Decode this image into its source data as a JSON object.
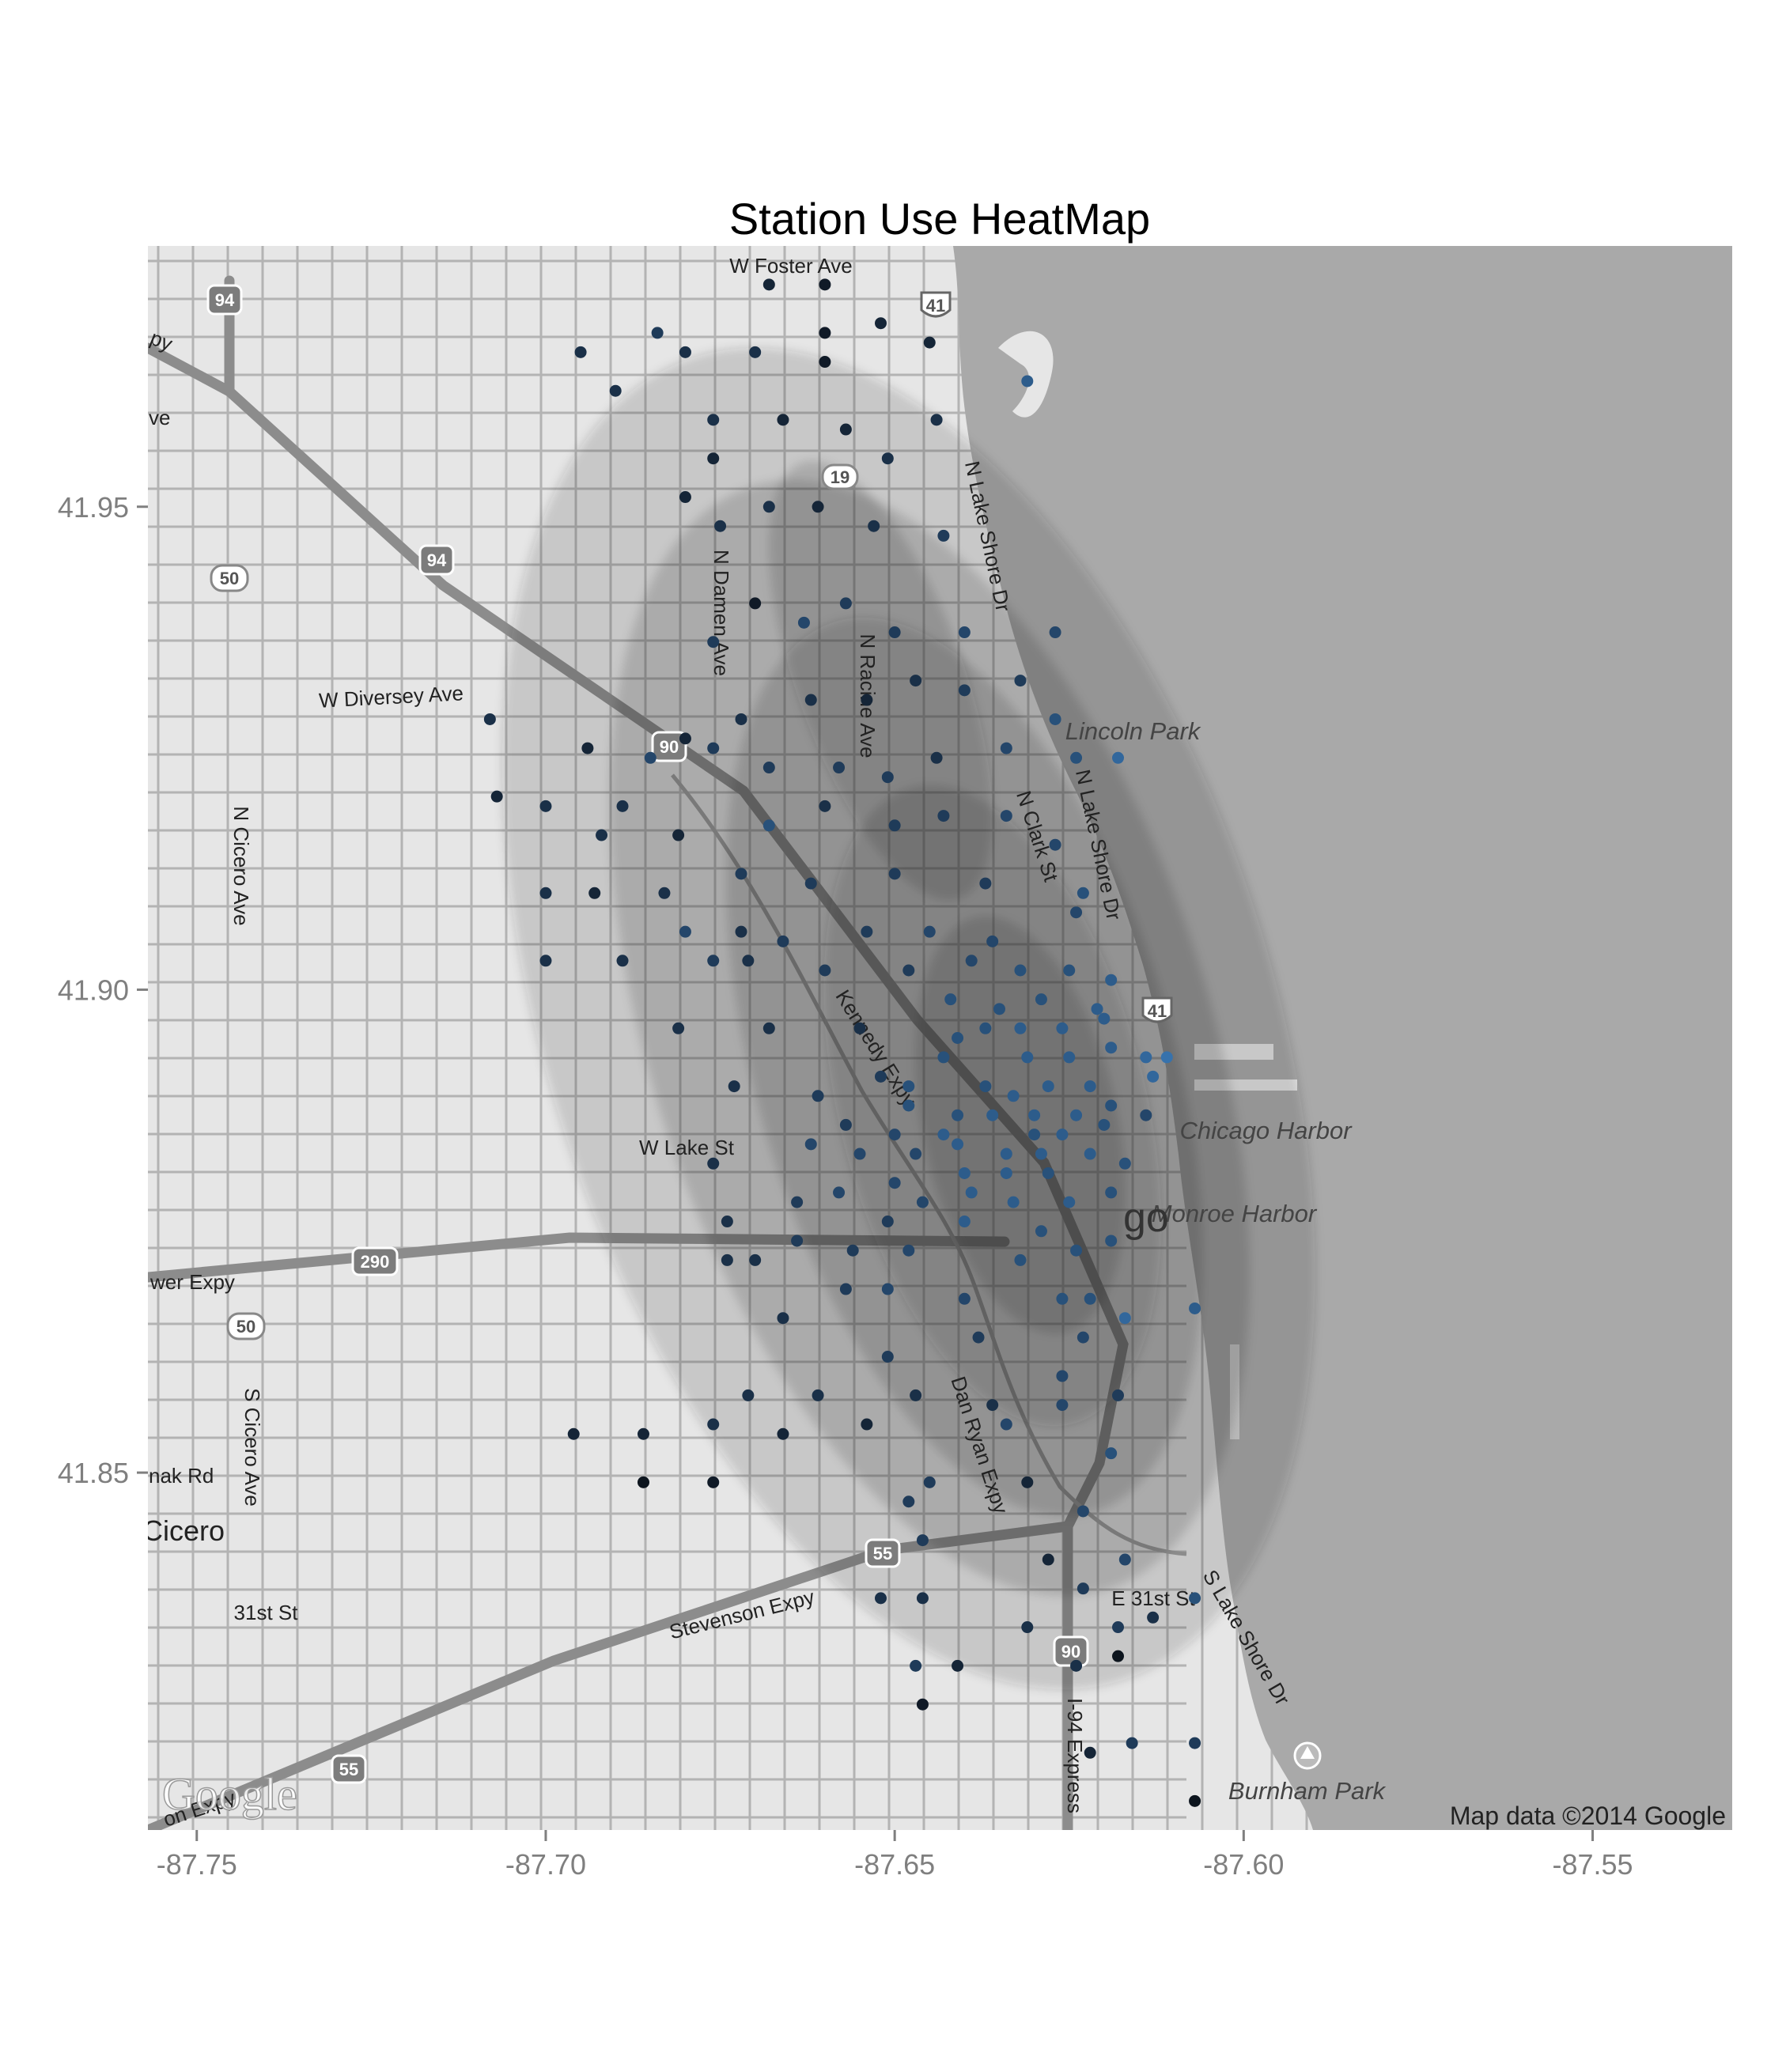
{
  "chart_data": {
    "type": "scatter",
    "title": "Station Use HeatMap",
    "xlim": [
      -87.757,
      -87.53
    ],
    "ylim": [
      41.813,
      41.977
    ],
    "x_ticks": [
      -87.75,
      -87.7,
      -87.65,
      -87.6,
      -87.55
    ],
    "x_tick_labels": [
      "-87.75",
      "-87.70",
      "-87.65",
      "-87.60",
      "-87.55"
    ],
    "y_ticks": [
      41.85,
      41.9,
      41.95
    ],
    "y_tick_labels": [
      "41.85",
      "41.90",
      "41.95"
    ],
    "grid": false,
    "background": "google-map-grayscale",
    "attribution": "Map data ©2014 Google",
    "logo": "Google",
    "colors": {
      "water": "#a9a9a9",
      "land": "#e6e6e6",
      "density": "#1e1e1e",
      "point_low": "#0b0f16",
      "point_high": "#3c7dbd"
    },
    "density_levels": [
      {
        "cx": -87.648,
        "cy": 41.897,
        "rx": 0.052,
        "ry": 0.072,
        "rot": -18
      },
      {
        "cx": -87.645,
        "cy": 41.895,
        "rx": 0.04,
        "ry": 0.06,
        "rot": -18
      },
      {
        "cx": -87.64,
        "cy": 41.892,
        "rx": 0.03,
        "ry": 0.048,
        "rot": -16
      },
      {
        "cx": -87.636,
        "cy": 41.888,
        "rx": 0.022,
        "ry": 0.034,
        "rot": -14
      },
      {
        "cx": -87.632,
        "cy": 41.886,
        "rx": 0.014,
        "ry": 0.022,
        "rot": -12
      },
      {
        "cx": -87.652,
        "cy": 41.932,
        "rx": 0.012,
        "ry": 0.024,
        "rot": -20
      }
    ],
    "points": [
      {
        "x": -87.668,
        "y": 41.973,
        "v": 0.2
      },
      {
        "x": -87.66,
        "y": 41.973,
        "v": 0.1
      },
      {
        "x": -87.652,
        "y": 41.969,
        "v": 0.2
      },
      {
        "x": -87.66,
        "y": 41.968,
        "v": 0.1
      },
      {
        "x": -87.695,
        "y": 41.966,
        "v": 0.3
      },
      {
        "x": -87.68,
        "y": 41.966,
        "v": 0.3
      },
      {
        "x": -87.67,
        "y": 41.966,
        "v": 0.3
      },
      {
        "x": -87.66,
        "y": 41.965,
        "v": 0.1
      },
      {
        "x": -87.645,
        "y": 41.967,
        "v": 0.2
      },
      {
        "x": -87.684,
        "y": 41.968,
        "v": 0.4
      },
      {
        "x": -87.69,
        "y": 41.962,
        "v": 0.3
      },
      {
        "x": -87.676,
        "y": 41.959,
        "v": 0.3
      },
      {
        "x": -87.666,
        "y": 41.959,
        "v": 0.2
      },
      {
        "x": -87.657,
        "y": 41.958,
        "v": 0.2
      },
      {
        "x": -87.651,
        "y": 41.955,
        "v": 0.3
      },
      {
        "x": -87.644,
        "y": 41.959,
        "v": 0.3
      },
      {
        "x": -87.631,
        "y": 41.963,
        "v": 0.7
      },
      {
        "x": -87.676,
        "y": 41.955,
        "v": 0.2
      },
      {
        "x": -87.68,
        "y": 41.951,
        "v": 0.2
      },
      {
        "x": -87.675,
        "y": 41.948,
        "v": 0.3
      },
      {
        "x": -87.668,
        "y": 41.95,
        "v": 0.3
      },
      {
        "x": -87.661,
        "y": 41.95,
        "v": 0.2
      },
      {
        "x": -87.653,
        "y": 41.948,
        "v": 0.3
      },
      {
        "x": -87.643,
        "y": 41.947,
        "v": 0.4
      },
      {
        "x": -87.67,
        "y": 41.94,
        "v": 0.1
      },
      {
        "x": -87.663,
        "y": 41.938,
        "v": 0.5
      },
      {
        "x": -87.657,
        "y": 41.94,
        "v": 0.4
      },
      {
        "x": -87.65,
        "y": 41.937,
        "v": 0.4
      },
      {
        "x": -87.64,
        "y": 41.937,
        "v": 0.5
      },
      {
        "x": -87.676,
        "y": 41.936,
        "v": 0.4
      },
      {
        "x": -87.68,
        "y": 41.926,
        "v": 0.2
      },
      {
        "x": -87.672,
        "y": 41.928,
        "v": 0.3
      },
      {
        "x": -87.662,
        "y": 41.93,
        "v": 0.3
      },
      {
        "x": -87.654,
        "y": 41.93,
        "v": 0.2
      },
      {
        "x": -87.647,
        "y": 41.932,
        "v": 0.3
      },
      {
        "x": -87.64,
        "y": 41.931,
        "v": 0.4
      },
      {
        "x": -87.632,
        "y": 41.932,
        "v": 0.4
      },
      {
        "x": -87.627,
        "y": 41.937,
        "v": 0.5
      },
      {
        "x": -87.627,
        "y": 41.928,
        "v": 0.6
      },
      {
        "x": -87.634,
        "y": 41.925,
        "v": 0.5
      },
      {
        "x": -87.624,
        "y": 41.924,
        "v": 0.6
      },
      {
        "x": -87.618,
        "y": 41.924,
        "v": 0.8
      },
      {
        "x": -87.644,
        "y": 41.924,
        "v": 0.3
      },
      {
        "x": -87.651,
        "y": 41.922,
        "v": 0.4
      },
      {
        "x": -87.658,
        "y": 41.923,
        "v": 0.4
      },
      {
        "x": -87.668,
        "y": 41.923,
        "v": 0.4
      },
      {
        "x": -87.676,
        "y": 41.925,
        "v": 0.4
      },
      {
        "x": -87.708,
        "y": 41.928,
        "v": 0.3
      },
      {
        "x": -87.694,
        "y": 41.925,
        "v": 0.2
      },
      {
        "x": -87.707,
        "y": 41.92,
        "v": 0.2
      },
      {
        "x": -87.685,
        "y": 41.924,
        "v": 0.5
      },
      {
        "x": -87.689,
        "y": 41.919,
        "v": 0.3
      },
      {
        "x": -87.7,
        "y": 41.919,
        "v": 0.3
      },
      {
        "x": -87.692,
        "y": 41.916,
        "v": 0.3
      },
      {
        "x": -87.681,
        "y": 41.916,
        "v": 0.2
      },
      {
        "x": -87.668,
        "y": 41.917,
        "v": 0.6
      },
      {
        "x": -87.66,
        "y": 41.919,
        "v": 0.3
      },
      {
        "x": -87.65,
        "y": 41.917,
        "v": 0.4
      },
      {
        "x": -87.643,
        "y": 41.918,
        "v": 0.4
      },
      {
        "x": -87.634,
        "y": 41.918,
        "v": 0.5
      },
      {
        "x": -87.627,
        "y": 41.915,
        "v": 0.5
      },
      {
        "x": -87.637,
        "y": 41.911,
        "v": 0.4
      },
      {
        "x": -87.65,
        "y": 41.912,
        "v": 0.4
      },
      {
        "x": -87.662,
        "y": 41.911,
        "v": 0.4
      },
      {
        "x": -87.672,
        "y": 41.912,
        "v": 0.4
      },
      {
        "x": -87.683,
        "y": 41.91,
        "v": 0.3
      },
      {
        "x": -87.693,
        "y": 41.91,
        "v": 0.2
      },
      {
        "x": -87.7,
        "y": 41.91,
        "v": 0.3
      },
      {
        "x": -87.68,
        "y": 41.906,
        "v": 0.5
      },
      {
        "x": -87.672,
        "y": 41.906,
        "v": 0.3
      },
      {
        "x": -87.666,
        "y": 41.905,
        "v": 0.4
      },
      {
        "x": -87.654,
        "y": 41.906,
        "v": 0.4
      },
      {
        "x": -87.645,
        "y": 41.906,
        "v": 0.5
      },
      {
        "x": -87.636,
        "y": 41.905,
        "v": 0.5
      },
      {
        "x": -87.624,
        "y": 41.908,
        "v": 0.5
      },
      {
        "x": -87.623,
        "y": 41.91,
        "v": 0.6
      },
      {
        "x": -87.7,
        "y": 41.903,
        "v": 0.3
      },
      {
        "x": -87.689,
        "y": 41.903,
        "v": 0.3
      },
      {
        "x": -87.676,
        "y": 41.903,
        "v": 0.4
      },
      {
        "x": -87.671,
        "y": 41.903,
        "v": 0.3
      },
      {
        "x": -87.66,
        "y": 41.902,
        "v": 0.4
      },
      {
        "x": -87.648,
        "y": 41.902,
        "v": 0.4
      },
      {
        "x": -87.639,
        "y": 41.903,
        "v": 0.5
      },
      {
        "x": -87.632,
        "y": 41.902,
        "v": 0.6
      },
      {
        "x": -87.625,
        "y": 41.902,
        "v": 0.6
      },
      {
        "x": -87.619,
        "y": 41.901,
        "v": 0.7
      },
      {
        "x": -87.642,
        "y": 41.899,
        "v": 0.6
      },
      {
        "x": -87.635,
        "y": 41.898,
        "v": 0.6
      },
      {
        "x": -87.629,
        "y": 41.899,
        "v": 0.6
      },
      {
        "x": -87.621,
        "y": 41.898,
        "v": 0.7
      },
      {
        "x": -87.681,
        "y": 41.896,
        "v": 0.3
      },
      {
        "x": -87.668,
        "y": 41.896,
        "v": 0.3
      },
      {
        "x": -87.655,
        "y": 41.896,
        "v": 0.3
      },
      {
        "x": -87.641,
        "y": 41.895,
        "v": 0.6
      },
      {
        "x": -87.637,
        "y": 41.896,
        "v": 0.6
      },
      {
        "x": -87.632,
        "y": 41.896,
        "v": 0.7
      },
      {
        "x": -87.626,
        "y": 41.896,
        "v": 0.7
      },
      {
        "x": -87.62,
        "y": 41.897,
        "v": 0.7
      },
      {
        "x": -87.643,
        "y": 41.893,
        "v": 0.6
      },
      {
        "x": -87.631,
        "y": 41.893,
        "v": 0.7
      },
      {
        "x": -87.625,
        "y": 41.893,
        "v": 0.7
      },
      {
        "x": -87.619,
        "y": 41.894,
        "v": 0.7
      },
      {
        "x": -87.614,
        "y": 41.893,
        "v": 0.8
      },
      {
        "x": -87.611,
        "y": 41.893,
        "v": 0.9
      },
      {
        "x": -87.613,
        "y": 41.891,
        "v": 0.8
      },
      {
        "x": -87.652,
        "y": 41.891,
        "v": 0.4
      },
      {
        "x": -87.648,
        "y": 41.89,
        "v": 0.6
      },
      {
        "x": -87.637,
        "y": 41.89,
        "v": 0.6
      },
      {
        "x": -87.633,
        "y": 41.889,
        "v": 0.7
      },
      {
        "x": -87.628,
        "y": 41.89,
        "v": 0.7
      },
      {
        "x": -87.622,
        "y": 41.89,
        "v": 0.7
      },
      {
        "x": -87.673,
        "y": 41.89,
        "v": 0.3
      },
      {
        "x": -87.661,
        "y": 41.889,
        "v": 0.4
      },
      {
        "x": -87.648,
        "y": 41.888,
        "v": 0.6
      },
      {
        "x": -87.641,
        "y": 41.887,
        "v": 0.6
      },
      {
        "x": -87.636,
        "y": 41.887,
        "v": 0.7
      },
      {
        "x": -87.63,
        "y": 41.887,
        "v": 0.7
      },
      {
        "x": -87.624,
        "y": 41.887,
        "v": 0.7
      },
      {
        "x": -87.619,
        "y": 41.888,
        "v": 0.6
      },
      {
        "x": -87.614,
        "y": 41.887,
        "v": 0.5
      },
      {
        "x": -87.657,
        "y": 41.886,
        "v": 0.4
      },
      {
        "x": -87.65,
        "y": 41.885,
        "v": 0.5
      },
      {
        "x": -87.643,
        "y": 41.885,
        "v": 0.7
      },
      {
        "x": -87.63,
        "y": 41.885,
        "v": 0.6
      },
      {
        "x": -87.626,
        "y": 41.885,
        "v": 0.7
      },
      {
        "x": -87.62,
        "y": 41.886,
        "v": 0.6
      },
      {
        "x": -87.662,
        "y": 41.884,
        "v": 0.5
      },
      {
        "x": -87.655,
        "y": 41.883,
        "v": 0.5
      },
      {
        "x": -87.647,
        "y": 41.883,
        "v": 0.5
      },
      {
        "x": -87.641,
        "y": 41.884,
        "v": 0.7
      },
      {
        "x": -87.634,
        "y": 41.883,
        "v": 0.7
      },
      {
        "x": -87.629,
        "y": 41.883,
        "v": 0.7
      },
      {
        "x": -87.622,
        "y": 41.883,
        "v": 0.7
      },
      {
        "x": -87.676,
        "y": 41.882,
        "v": 0.3
      },
      {
        "x": -87.64,
        "y": 41.881,
        "v": 0.7
      },
      {
        "x": -87.634,
        "y": 41.881,
        "v": 0.7
      },
      {
        "x": -87.628,
        "y": 41.881,
        "v": 0.6
      },
      {
        "x": -87.617,
        "y": 41.882,
        "v": 0.6
      },
      {
        "x": -87.65,
        "y": 41.88,
        "v": 0.5
      },
      {
        "x": -87.639,
        "y": 41.879,
        "v": 0.7
      },
      {
        "x": -87.658,
        "y": 41.879,
        "v": 0.5
      },
      {
        "x": -87.664,
        "y": 41.878,
        "v": 0.4
      },
      {
        "x": -87.646,
        "y": 41.878,
        "v": 0.5
      },
      {
        "x": -87.633,
        "y": 41.878,
        "v": 0.7
      },
      {
        "x": -87.625,
        "y": 41.878,
        "v": 0.7
      },
      {
        "x": -87.619,
        "y": 41.879,
        "v": 0.6
      },
      {
        "x": -87.629,
        "y": 41.875,
        "v": 0.6
      },
      {
        "x": -87.64,
        "y": 41.876,
        "v": 0.7
      },
      {
        "x": -87.651,
        "y": 41.876,
        "v": 0.4
      },
      {
        "x": -87.674,
        "y": 41.876,
        "v": 0.3
      },
      {
        "x": -87.664,
        "y": 41.874,
        "v": 0.4
      },
      {
        "x": -87.656,
        "y": 41.873,
        "v": 0.4
      },
      {
        "x": -87.648,
        "y": 41.873,
        "v": 0.5
      },
      {
        "x": -87.632,
        "y": 41.872,
        "v": 0.6
      },
      {
        "x": -87.624,
        "y": 41.873,
        "v": 0.6
      },
      {
        "x": -87.619,
        "y": 41.874,
        "v": 0.6
      },
      {
        "x": -87.674,
        "y": 41.872,
        "v": 0.3
      },
      {
        "x": -87.67,
        "y": 41.872,
        "v": 0.3
      },
      {
        "x": -87.657,
        "y": 41.869,
        "v": 0.4
      },
      {
        "x": -87.651,
        "y": 41.869,
        "v": 0.5
      },
      {
        "x": -87.64,
        "y": 41.868,
        "v": 0.5
      },
      {
        "x": -87.626,
        "y": 41.868,
        "v": 0.6
      },
      {
        "x": -87.622,
        "y": 41.868,
        "v": 0.6
      },
      {
        "x": -87.607,
        "y": 41.867,
        "v": 0.7
      },
      {
        "x": -87.617,
        "y": 41.866,
        "v": 0.8
      },
      {
        "x": -87.666,
        "y": 41.866,
        "v": 0.3
      },
      {
        "x": -87.638,
        "y": 41.864,
        "v": 0.4
      },
      {
        "x": -87.623,
        "y": 41.864,
        "v": 0.5
      },
      {
        "x": -87.651,
        "y": 41.862,
        "v": 0.4
      },
      {
        "x": -87.626,
        "y": 41.86,
        "v": 0.5
      },
      {
        "x": -87.671,
        "y": 41.858,
        "v": 0.3
      },
      {
        "x": -87.661,
        "y": 41.858,
        "v": 0.3
      },
      {
        "x": -87.647,
        "y": 41.858,
        "v": 0.3
      },
      {
        "x": -87.636,
        "y": 41.857,
        "v": 0.3
      },
      {
        "x": -87.626,
        "y": 41.857,
        "v": 0.5
      },
      {
        "x": -87.618,
        "y": 41.858,
        "v": 0.4
      },
      {
        "x": -87.654,
        "y": 41.855,
        "v": 0.2
      },
      {
        "x": -87.634,
        "y": 41.855,
        "v": 0.5
      },
      {
        "x": -87.696,
        "y": 41.854,
        "v": 0.2
      },
      {
        "x": -87.686,
        "y": 41.854,
        "v": 0.2
      },
      {
        "x": -87.676,
        "y": 41.855,
        "v": 0.3
      },
      {
        "x": -87.666,
        "y": 41.854,
        "v": 0.2
      },
      {
        "x": -87.619,
        "y": 41.852,
        "v": 0.6
      },
      {
        "x": -87.686,
        "y": 41.849,
        "v": 0.05
      },
      {
        "x": -87.676,
        "y": 41.849,
        "v": 0.1
      },
      {
        "x": -87.645,
        "y": 41.849,
        "v": 0.4
      },
      {
        "x": -87.631,
        "y": 41.849,
        "v": 0.2
      },
      {
        "x": -87.648,
        "y": 41.847,
        "v": 0.4
      },
      {
        "x": -87.623,
        "y": 41.846,
        "v": 0.5
      },
      {
        "x": -87.646,
        "y": 41.843,
        "v": 0.4
      },
      {
        "x": -87.617,
        "y": 41.841,
        "v": 0.5
      },
      {
        "x": -87.628,
        "y": 41.841,
        "v": 0.2
      },
      {
        "x": -87.623,
        "y": 41.838,
        "v": 0.4
      },
      {
        "x": -87.607,
        "y": 41.837,
        "v": 0.6
      },
      {
        "x": -87.652,
        "y": 41.837,
        "v": 0.3
      },
      {
        "x": -87.646,
        "y": 41.837,
        "v": 0.3
      },
      {
        "x": -87.613,
        "y": 41.835,
        "v": 0.3
      },
      {
        "x": -87.618,
        "y": 41.834,
        "v": 0.4
      },
      {
        "x": -87.631,
        "y": 41.834,
        "v": 0.3
      },
      {
        "x": -87.618,
        "y": 41.831,
        "v": 0.05
      },
      {
        "x": -87.624,
        "y": 41.83,
        "v": 0.3
      },
      {
        "x": -87.647,
        "y": 41.83,
        "v": 0.4
      },
      {
        "x": -87.641,
        "y": 41.83,
        "v": 0.2
      },
      {
        "x": -87.646,
        "y": 41.826,
        "v": 0.1
      },
      {
        "x": -87.607,
        "y": 41.822,
        "v": 0.4
      },
      {
        "x": -87.616,
        "y": 41.822,
        "v": 0.4
      },
      {
        "x": -87.622,
        "y": 41.821,
        "v": 0.2
      },
      {
        "x": -87.607,
        "y": 41.816,
        "v": 0.05
      }
    ]
  },
  "map_labels": {
    "streets": [
      "W Foster Ave",
      "W Diversey Ave",
      "N Cicero Ave",
      "N Damen Ave",
      "N Racine Ave",
      "N Lake Shore Dr",
      "N Clark St",
      "Kennedy Expy",
      "W Lake St",
      "Dan Ryan Expy",
      "S Cicero Ave",
      "31st St",
      "E 31st St",
      "Stevenson Expy",
      "S Lake Shore Dr",
      "I-94 Express",
      "wer Expy",
      "nak Rd",
      "on Expy",
      "ve",
      "py"
    ],
    "places": [
      "Lincoln Park",
      "Chicago Harbor",
      "Monroe Harbor",
      "Burnham Park",
      "Cicero",
      "go"
    ],
    "shields": [
      "94",
      "94",
      "90",
      "90",
      "41",
      "41",
      "290",
      "55",
      "55",
      "19",
      "50",
      "50"
    ]
  }
}
